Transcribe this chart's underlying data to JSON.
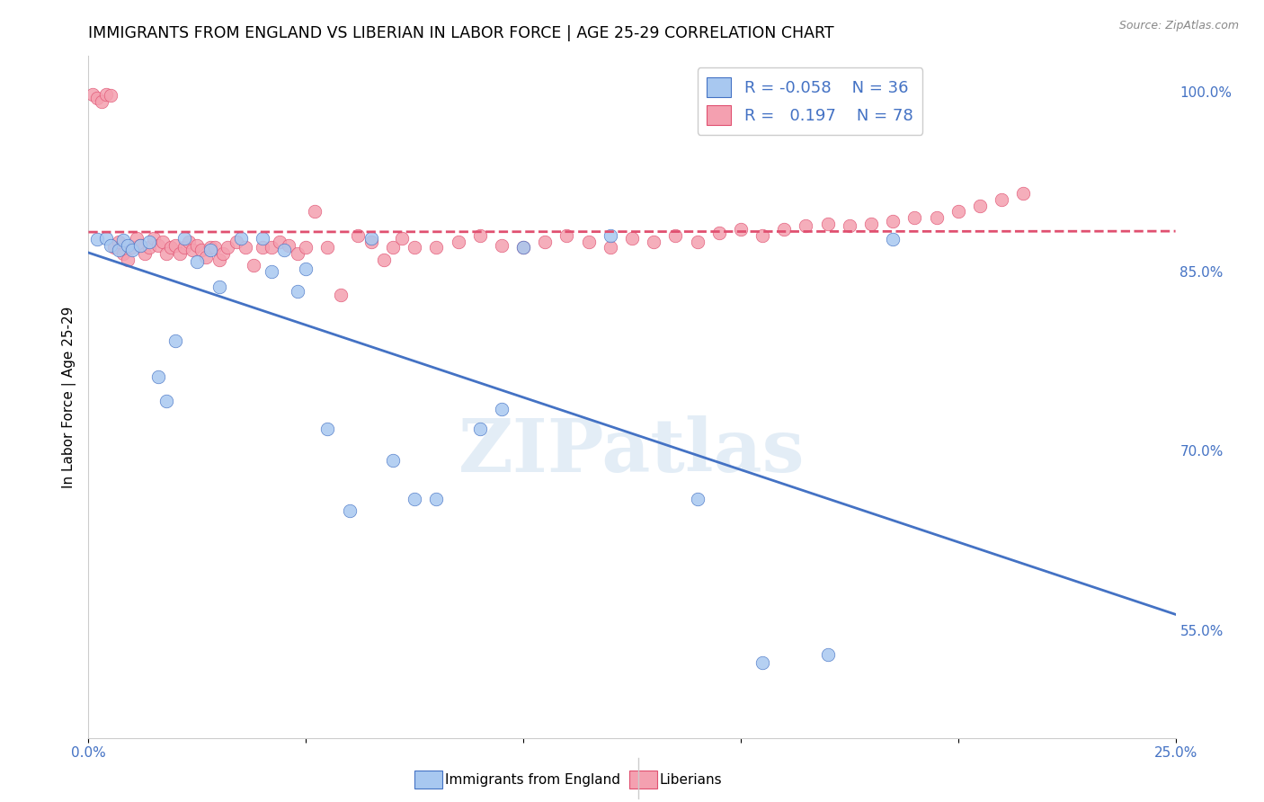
{
  "title": "IMMIGRANTS FROM ENGLAND VS LIBERIAN IN LABOR FORCE | AGE 25-29 CORRELATION CHART",
  "source": "Source: ZipAtlas.com",
  "ylabel": "In Labor Force | Age 25-29",
  "xmin": 0.0,
  "xmax": 0.25,
  "ymin": 0.46,
  "ymax": 1.03,
  "legend_R_england": "-0.058",
  "legend_N_england": "36",
  "legend_R_liberian": "0.197",
  "legend_N_liberian": "78",
  "color_england": "#a8c8f0",
  "color_liberian": "#f4a0b0",
  "color_england_line": "#4472c4",
  "color_liberian_line": "#e05070",
  "england_scatter_x": [
    0.002,
    0.004,
    0.005,
    0.007,
    0.008,
    0.009,
    0.01,
    0.012,
    0.014,
    0.016,
    0.018,
    0.02,
    0.022,
    0.025,
    0.028,
    0.03,
    0.035,
    0.04,
    0.042,
    0.045,
    0.048,
    0.05,
    0.055,
    0.06,
    0.065,
    0.07,
    0.075,
    0.08,
    0.09,
    0.095,
    0.1,
    0.12,
    0.14,
    0.155,
    0.17,
    0.185
  ],
  "england_scatter_y": [
    0.877,
    0.878,
    0.872,
    0.868,
    0.876,
    0.872,
    0.868,
    0.872,
    0.875,
    0.762,
    0.742,
    0.792,
    0.878,
    0.858,
    0.868,
    0.837,
    0.878,
    0.878,
    0.85,
    0.868,
    0.833,
    0.852,
    0.718,
    0.65,
    0.878,
    0.692,
    0.66,
    0.66,
    0.718,
    0.735,
    0.87,
    0.88,
    0.66,
    0.523,
    0.53,
    0.877
  ],
  "liberian_scatter_x": [
    0.001,
    0.002,
    0.003,
    0.004,
    0.005,
    0.006,
    0.007,
    0.008,
    0.009,
    0.01,
    0.011,
    0.012,
    0.013,
    0.014,
    0.015,
    0.016,
    0.017,
    0.018,
    0.019,
    0.02,
    0.021,
    0.022,
    0.023,
    0.024,
    0.025,
    0.026,
    0.027,
    0.028,
    0.029,
    0.03,
    0.031,
    0.032,
    0.034,
    0.036,
    0.038,
    0.04,
    0.042,
    0.044,
    0.046,
    0.048,
    0.05,
    0.052,
    0.055,
    0.058,
    0.062,
    0.065,
    0.068,
    0.07,
    0.072,
    0.075,
    0.08,
    0.085,
    0.09,
    0.095,
    0.1,
    0.105,
    0.11,
    0.115,
    0.12,
    0.125,
    0.13,
    0.135,
    0.14,
    0.145,
    0.15,
    0.155,
    0.16,
    0.165,
    0.17,
    0.175,
    0.18,
    0.185,
    0.19,
    0.195,
    0.2,
    0.205,
    0.21,
    0.215
  ],
  "liberian_scatter_y": [
    0.998,
    0.995,
    0.992,
    0.998,
    0.997,
    0.87,
    0.875,
    0.865,
    0.86,
    0.87,
    0.878,
    0.872,
    0.865,
    0.87,
    0.878,
    0.872,
    0.875,
    0.865,
    0.87,
    0.872,
    0.865,
    0.87,
    0.875,
    0.868,
    0.872,
    0.868,
    0.862,
    0.87,
    0.87,
    0.86,
    0.865,
    0.87,
    0.875,
    0.87,
    0.855,
    0.87,
    0.87,
    0.875,
    0.872,
    0.865,
    0.87,
    0.9,
    0.87,
    0.83,
    0.88,
    0.875,
    0.86,
    0.87,
    0.878,
    0.87,
    0.87,
    0.875,
    0.88,
    0.872,
    0.87,
    0.875,
    0.88,
    0.875,
    0.87,
    0.878,
    0.875,
    0.88,
    0.875,
    0.882,
    0.885,
    0.88,
    0.885,
    0.888,
    0.89,
    0.888,
    0.89,
    0.892,
    0.895,
    0.895,
    0.9,
    0.905,
    0.91,
    0.915
  ],
  "watermark": "ZIPatlas",
  "background_color": "#ffffff",
  "yticks": [
    0.55,
    0.7,
    0.85,
    1.0
  ],
  "ytick_labels": [
    "55.0%",
    "70.0%",
    "85.0%",
    "100.0%"
  ]
}
